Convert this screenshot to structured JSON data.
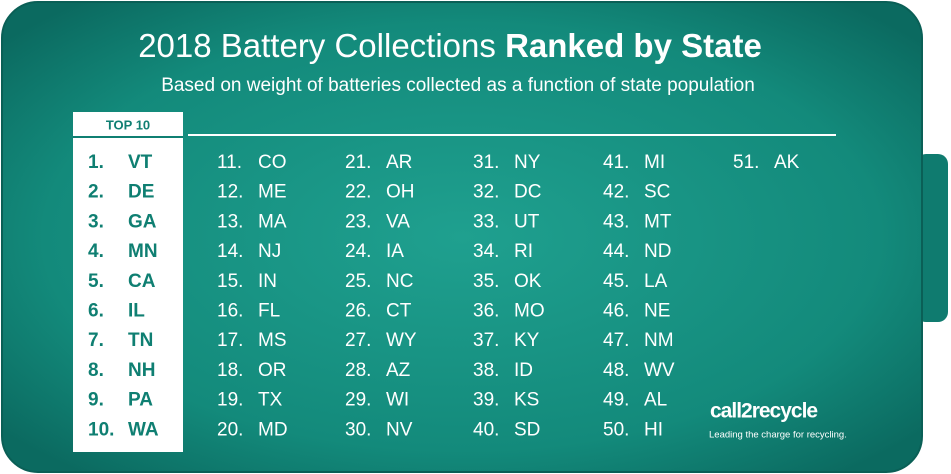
{
  "header": {
    "title": "2018 Battery Collections",
    "title_bold": "Ranked by State",
    "subtitle": "Based on weight of batteries collected as a function of state population"
  },
  "top10": {
    "label": "TOP 10",
    "items": [
      {
        "rank": "1.",
        "state": "VT"
      },
      {
        "rank": "2.",
        "state": "DE"
      },
      {
        "rank": "3.",
        "state": "GA"
      },
      {
        "rank": "4.",
        "state": "MN"
      },
      {
        "rank": "5.",
        "state": "CA"
      },
      {
        "rank": "6.",
        "state": "IL"
      },
      {
        "rank": "7.",
        "state": "TN"
      },
      {
        "rank": "8.",
        "state": "NH"
      },
      {
        "rank": "9.",
        "state": "PA"
      },
      {
        "rank": "10.",
        "state": "WA"
      }
    ]
  },
  "columns": [
    [
      {
        "rank": "11.",
        "state": "CO"
      },
      {
        "rank": "12.",
        "state": "ME"
      },
      {
        "rank": "13.",
        "state": "MA"
      },
      {
        "rank": "14.",
        "state": "NJ"
      },
      {
        "rank": "15.",
        "state": "IN"
      },
      {
        "rank": "16.",
        "state": "FL"
      },
      {
        "rank": "17.",
        "state": "MS"
      },
      {
        "rank": "18.",
        "state": "OR"
      },
      {
        "rank": "19.",
        "state": "TX"
      },
      {
        "rank": "20.",
        "state": "MD"
      }
    ],
    [
      {
        "rank": "21.",
        "state": "AR"
      },
      {
        "rank": "22.",
        "state": "OH"
      },
      {
        "rank": "23.",
        "state": "VA"
      },
      {
        "rank": "24.",
        "state": "IA"
      },
      {
        "rank": "25.",
        "state": "NC"
      },
      {
        "rank": "26.",
        "state": "CT"
      },
      {
        "rank": "27.",
        "state": "WY"
      },
      {
        "rank": "28.",
        "state": "AZ"
      },
      {
        "rank": "29.",
        "state": "WI"
      },
      {
        "rank": "30.",
        "state": "NV"
      }
    ],
    [
      {
        "rank": "31.",
        "state": "NY"
      },
      {
        "rank": "32.",
        "state": "DC"
      },
      {
        "rank": "33.",
        "state": "UT"
      },
      {
        "rank": "34.",
        "state": "RI"
      },
      {
        "rank": "35.",
        "state": "OK"
      },
      {
        "rank": "36.",
        "state": "MO"
      },
      {
        "rank": "37.",
        "state": "KY"
      },
      {
        "rank": "38.",
        "state": "ID"
      },
      {
        "rank": "39.",
        "state": "KS"
      },
      {
        "rank": "40.",
        "state": "SD"
      }
    ],
    [
      {
        "rank": "41.",
        "state": "MI"
      },
      {
        "rank": "42.",
        "state": "SC"
      },
      {
        "rank": "43.",
        "state": "MT"
      },
      {
        "rank": "44.",
        "state": "ND"
      },
      {
        "rank": "45.",
        "state": "LA"
      },
      {
        "rank": "46.",
        "state": "NE"
      },
      {
        "rank": "47.",
        "state": "NM"
      },
      {
        "rank": "48.",
        "state": "WV"
      },
      {
        "rank": "49.",
        "state": "AL"
      },
      {
        "rank": "50.",
        "state": "HI"
      }
    ],
    [
      {
        "rank": "51.",
        "state": "AK"
      }
    ]
  ],
  "logo": {
    "name": "call2recycle",
    "tagline": "Leading the charge for recycling."
  }
}
